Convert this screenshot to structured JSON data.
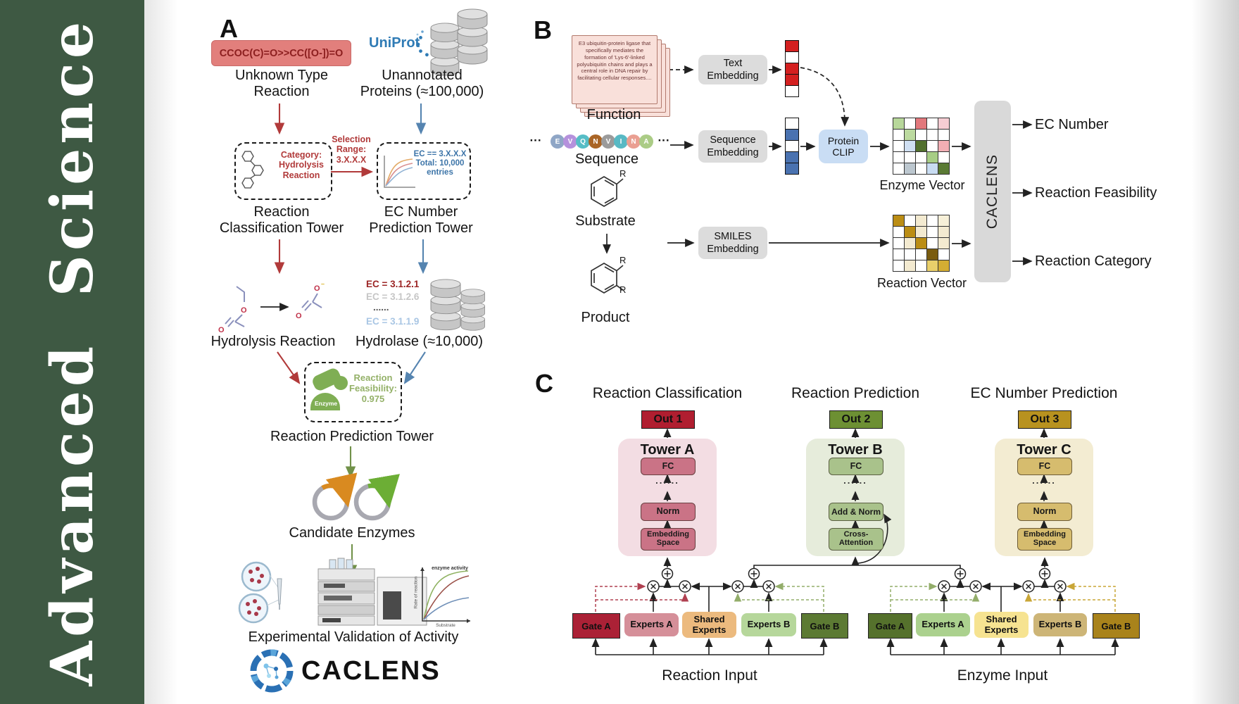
{
  "journal": {
    "name": "Advanced Science",
    "sidebar_color": "#3e5943"
  },
  "panel_a": {
    "label": "A",
    "smiles": "CCOC(C)=O>>CC([O-])=O",
    "unknown_type": "Unknown Type\nReaction",
    "uniprot": "UniProt",
    "unannotated": "Unannotated\nProteins (≈100,000)",
    "selection_range": "Selection\nRange:\n3.X.X.X",
    "category_box": "Category:\nHydrolysis\nReaction",
    "ec_box": "EC == 3.X.X.X\nTotal: 10,000\nentries",
    "classification_tower": "Reaction\nClassification Tower",
    "ec_tower": "EC Number\nPrediction Tower",
    "ec_list": [
      {
        "text": "EC = 3.1.2.1",
        "color": "#9c2626"
      },
      {
        "text": "EC = 3.1.2.6",
        "color": "#c6c6c6"
      },
      {
        "text": "......",
        "color": "#555555"
      },
      {
        "text": "EC = 3.1.1.9",
        "color": "#a9c6e4"
      }
    ],
    "hydrolysis_reaction": "Hydrolysis Reaction",
    "hydrolase": "Hydrolase (≈10,000)",
    "enzyme_icon": "Enzyme",
    "feasibility": "Reaction\nFeasibility:\n0.975",
    "prediction_tower": "Reaction Prediction Tower",
    "candidate_enzymes": "Candidate Enzymes",
    "activity_plot": {
      "curve_label": "enzyme activity",
      "ylabel": "Rate of reaction",
      "xlabel": "Substrate"
    },
    "validation": "Experimental Validation of Activity",
    "logo_text": "CACLENS"
  },
  "panel_b": {
    "label": "B",
    "function_card": "E3 ubiquitin-protein ligase that specifically mediates the formation of 'Lys-6'-linked polyubiquitin chains and plays a central role in DNA repair by facilitating cellular responses....",
    "function_label": "Function",
    "sequence_label": "Sequence",
    "substrate_label": "Substrate",
    "product_label": "Product",
    "r_group": "R",
    "ellipsis": "···",
    "sequence_letters": [
      {
        "ch": "E",
        "color": "#8fa6c6"
      },
      {
        "ch": "V",
        "color": "#b591dc"
      },
      {
        "ch": "Q",
        "color": "#56bdc6"
      },
      {
        "ch": "N",
        "color": "#aa6526"
      },
      {
        "ch": "V",
        "color": "#9b9b9b"
      },
      {
        "ch": "I",
        "color": "#58b9c4"
      },
      {
        "ch": "N",
        "color": "#ea9f92"
      },
      {
        "ch": "A",
        "color": "#abcc86"
      }
    ],
    "text_embedding": "Text\nEmbedding",
    "sequence_embedding": "Sequence\nEmbedding",
    "smiles_embedding": "SMILES\nEmbedding",
    "protein_clip": "Protein\nCLIP",
    "text_vector": [
      "#d42020",
      "#ffffff",
      "#d42020",
      "#d42020",
      "#ffffff"
    ],
    "sequence_vector": [
      "#ffffff",
      "#4a72b0",
      "#ffffff",
      "#4a72b0",
      "#4a72b0"
    ],
    "enzyme_vector_label": "Enzyme Vector",
    "reaction_vector_label": "Reaction Vector",
    "enzyme_vector_cells": [
      [
        "#b7d79a",
        "#ffffff",
        "#e2787c",
        "#ffffff",
        "#f6cdd3"
      ],
      [
        "#ffffff",
        "#bcdaa0",
        "#ffffff",
        "#ffffff",
        "#ffffff"
      ],
      [
        "#ffffff",
        "#cfdff2",
        "#52702e",
        "#ffffff",
        "#f2aeb4"
      ],
      [
        "#ffffff",
        "#ffffff",
        "#ffffff",
        "#a7cd85",
        "#ffffff"
      ],
      [
        "#ffffff",
        "#bcc7cf",
        "#ffffff",
        "#c8dcf2",
        "#5a7a34"
      ]
    ],
    "reaction_vector_cells": [
      [
        "#bb8d14",
        "#ffffff",
        "#f3ead0",
        "#ffffff",
        "#f7f0d8"
      ],
      [
        "#ffffff",
        "#bb8d14",
        "#f3ead0",
        "#ffffff",
        "#f3ead0"
      ],
      [
        "#ffffff",
        "#f3ead0",
        "#bb8d14",
        "#ffffff",
        "#f3ead0"
      ],
      [
        "#ffffff",
        "#ffffff",
        "#ffffff",
        "#7a5c10",
        "#ffffff"
      ],
      [
        "#ffffff",
        "#f3ead0",
        "#ffffff",
        "#e9cf6a",
        "#d4ad33"
      ]
    ],
    "caclens": "CACLENS",
    "outputs": [
      "EC Number",
      "Reaction Feasibility",
      "Reaction Category"
    ]
  },
  "panel_c": {
    "label": "C",
    "towers": [
      {
        "heading": "Reaction Classification",
        "out": "Out 1",
        "name": "Tower A",
        "blocks": {
          "fc": "FC",
          "dots": "......",
          "mid": "Norm",
          "bottom": "Embedding\nSpace"
        },
        "colors": {
          "panel": "#f3dde3",
          "block": "#ca7386",
          "out": "#b01e30"
        }
      },
      {
        "heading": "Reaction Prediction",
        "out": "Out 2",
        "name": "Tower B",
        "blocks": {
          "fc": "FC",
          "dots": "......",
          "mid": "Add & Norm",
          "bottom": "Cross-\nAttention"
        },
        "colors": {
          "panel": "#e6ecdb",
          "block": "#a9c28b",
          "out": "#6d9033"
        }
      },
      {
        "heading": "EC Number Prediction",
        "out": "Out 3",
        "name": "Tower C",
        "blocks": {
          "fc": "FC",
          "dots": "......",
          "mid": "Norm",
          "bottom": "Embedding\nSpace"
        },
        "colors": {
          "panel": "#f3ecd2",
          "block": "#d6bc6e",
          "out": "#b8921f"
        }
      }
    ],
    "groups": [
      {
        "gate_a": "Gate A",
        "experts_a": "Experts A",
        "shared": "Shared\nExperts",
        "experts_b": "Experts B",
        "gate_b": "Gate B",
        "input": "Reaction Input",
        "colors": {
          "gate_a": "#ab2136",
          "experts_a": "#d58f99",
          "shared": "#ecba7e",
          "experts_b": "#b6d79b",
          "gate_b": "#5c7a33"
        }
      },
      {
        "gate_a": "Gate A",
        "experts_a": "Experts A",
        "shared": "Shared\nExperts",
        "experts_b": "Experts B",
        "gate_b": "Gate B",
        "input": "Enzyme Input",
        "colors": {
          "gate_a": "#55712c",
          "experts_a": "#abd18e",
          "shared": "#f6e391",
          "experts_b": "#cdb577",
          "gate_b": "#a9831b"
        }
      }
    ]
  }
}
